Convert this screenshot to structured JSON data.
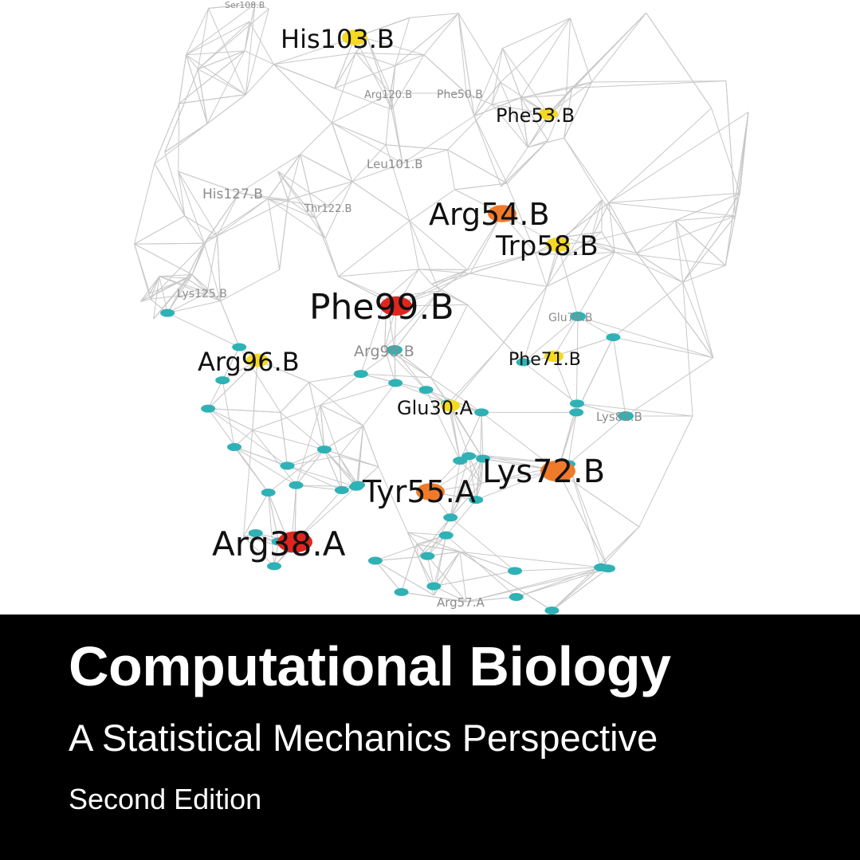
{
  "cover": {
    "title": "Computational Biology",
    "subtitle": "A Statistical Mechanics Perspective",
    "edition": "Second Edition"
  },
  "colors": {
    "red": "#e0251f",
    "orange": "#f07a2a",
    "yellow": "#f5d922",
    "teal": "#2fb2b6",
    "edge": "#c8c8c8",
    "band": "#000000"
  },
  "network": {
    "highlighted_residues": [
      {
        "label": "His103.B",
        "color": "yellow"
      },
      {
        "label": "Phe53.B",
        "color": "yellow"
      },
      {
        "label": "Arg54.B",
        "color": "orange"
      },
      {
        "label": "Trp58.B",
        "color": "yellow"
      },
      {
        "label": "Phe99.B",
        "color": "red"
      },
      {
        "label": "Arg96.B",
        "color": "yellow"
      },
      {
        "label": "Phe71.B",
        "color": "yellow"
      },
      {
        "label": "Glu30.A",
        "color": "yellow"
      },
      {
        "label": "Lys72.B",
        "color": "orange"
      },
      {
        "label": "Tyr55.A",
        "color": "orange"
      },
      {
        "label": "Arg38.A",
        "color": "red"
      }
    ],
    "minor_residues": [
      {
        "label": "His127.B"
      },
      {
        "label": "Leu101.B"
      },
      {
        "label": "Phe50.B"
      },
      {
        "label": "Arg120.B"
      },
      {
        "label": "Lys125.B"
      },
      {
        "label": "Thr122.B"
      },
      {
        "label": "Arg98.B"
      },
      {
        "label": "Glu76.B"
      },
      {
        "label": "Lys81.B"
      },
      {
        "label": "Arg57.A"
      },
      {
        "label": "Ser108.B"
      }
    ]
  }
}
